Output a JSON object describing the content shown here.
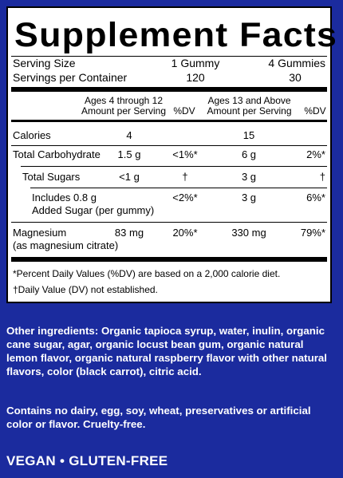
{
  "panel": {
    "title": "Supplement Facts",
    "serving_size_label": "Serving Size",
    "serving_size_col1": "1 Gummy",
    "serving_size_col2": "4 Gummies",
    "servings_label": "Servings per Container",
    "servings_col1": "120",
    "servings_col2": "30",
    "header": {
      "group1_line1": "Ages 4 through 12",
      "group1_line2": "Amount per Serving",
      "dv1": "%DV",
      "group2_line1": "Ages 13 and Above",
      "group2_line2": "Amount per Serving",
      "dv2": "%DV"
    },
    "rows": [
      {
        "name": "Calories",
        "a1": "4",
        "d1": "",
        "a2": "15",
        "d2": ""
      },
      {
        "name": "Total Carbohydrate",
        "a1": "1.5 g",
        "d1": "<1%*",
        "a2": "6 g",
        "d2": "2%*"
      },
      {
        "name": "Total Sugars",
        "a1": "<1 g",
        "d1": "†",
        "a2": "3 g",
        "d2": "†"
      },
      {
        "name": "Includes 0.8 g",
        "name2": "Added Sugar (per gummy)",
        "a1": "",
        "d1": "<2%*",
        "a2": "3 g",
        "d2": "6%*"
      },
      {
        "name": "Magnesium",
        "name2": "(as magnesium citrate)",
        "a1": "83 mg",
        "d1": "20%*",
        "a2": "330 mg",
        "d2": "79%*"
      }
    ],
    "footnote1": "*Percent Daily Values (%DV) are based on a 2,000 calorie diet.",
    "footnote2": "†Daily Value (DV) not established."
  },
  "other_ingredients": "Other ingredients: Organic tapioca syrup, water, inulin, organic cane sugar, agar, organic locust bean gum, organic natural lemon flavor, organic natural raspberry flavor with other natural flavors, color (black carrot), citric acid.",
  "contains": "Contains no dairy, egg, soy, wheat, preservatives or artificial color or flavor. Cruelty-free.",
  "badge": "VEGAN • GLUTEN-FREE"
}
